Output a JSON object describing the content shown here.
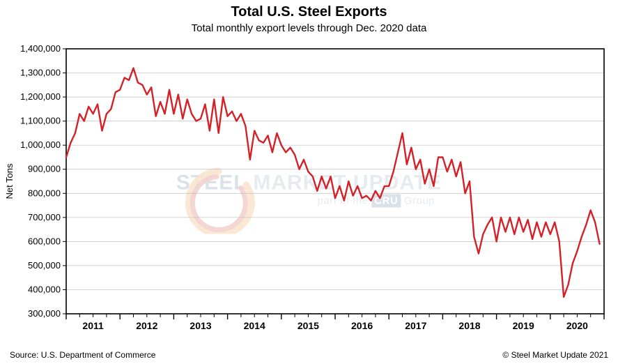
{
  "chart": {
    "type": "line",
    "title": "Total U.S. Steel Exports",
    "title_fontsize": 20,
    "title_fontweight": 700,
    "subtitle": "Total monthly export levels through Dec. 2020 data",
    "subtitle_fontsize": 15,
    "ylabel": "Net Tons",
    "ylabel_fontsize": 13,
    "background_color": "#ffffff",
    "plot_border_color": "#000000",
    "plot_border_width": 1.6,
    "grid_color": "#bfbfbf",
    "grid_width": 0.7,
    "line_color": "#d62027",
    "line_width": 2.4,
    "tick_font_size": 13,
    "xtick_font_size": 14,
    "xtick_font_weight": 700,
    "ylim": [
      300000,
      1400000
    ],
    "ytick_step": 100000,
    "yticks_labels": [
      "300,000",
      "400,000",
      "500,000",
      "600,000",
      "700,000",
      "800,000",
      "900,000",
      "1,000,000",
      "1,100,000",
      "1,200,000",
      "1,300,000",
      "1,400,000"
    ],
    "xlim": [
      2011,
      2021
    ],
    "xtick_major_step": 1,
    "xticks_labels": [
      "2011",
      "2012",
      "2013",
      "2014",
      "2015",
      "2016",
      "2017",
      "2018",
      "2019",
      "2020"
    ],
    "x_minor_divisions": 4,
    "minor_tick_len": 5,
    "major_tick_len": 8,
    "values": [
      950000,
      1010000,
      1050000,
      1130000,
      1100000,
      1160000,
      1130000,
      1170000,
      1060000,
      1130000,
      1150000,
      1220000,
      1230000,
      1280000,
      1270000,
      1320000,
      1260000,
      1250000,
      1210000,
      1240000,
      1120000,
      1180000,
      1130000,
      1230000,
      1130000,
      1210000,
      1110000,
      1190000,
      1130000,
      1100000,
      1110000,
      1170000,
      1060000,
      1190000,
      1050000,
      1200000,
      1120000,
      1140000,
      1100000,
      1130000,
      1080000,
      940000,
      1060000,
      1020000,
      1010000,
      1040000,
      970000,
      1050000,
      1000000,
      970000,
      990000,
      960000,
      900000,
      940000,
      890000,
      870000,
      810000,
      870000,
      820000,
      870000,
      780000,
      830000,
      770000,
      850000,
      790000,
      830000,
      780000,
      790000,
      770000,
      810000,
      780000,
      830000,
      830000,
      890000,
      970000,
      1050000,
      920000,
      990000,
      900000,
      940000,
      840000,
      900000,
      830000,
      950000,
      950000,
      890000,
      940000,
      870000,
      930000,
      800000,
      850000,
      620000,
      550000,
      630000,
      670000,
      700000,
      600000,
      700000,
      640000,
      700000,
      630000,
      700000,
      640000,
      690000,
      610000,
      680000,
      620000,
      680000,
      630000,
      680000,
      600000,
      370000,
      420000,
      510000,
      560000,
      620000,
      670000,
      730000,
      680000,
      590000
    ],
    "x_start_month_index": 0,
    "months_per_year": 12
  },
  "watermark": {
    "line1_a": "STEEL",
    "line1_b": " MARKET ",
    "line1_c": "UPDATE",
    "line2_a": "part of the ",
    "line2_b": "CRU",
    "line2_c": " Group",
    "color_strong": "#5b7d99",
    "color_light": "#8fa9bd",
    "arc_orange": "#e98b2a",
    "arc_red": "#c73a2e",
    "fontsize_line1": 30,
    "fontsize_line2": 15
  },
  "footnotes": {
    "left": "Source: U.S. Department of Commerce",
    "right": "© Steel Market Update 2021",
    "fontsize": 12
  }
}
